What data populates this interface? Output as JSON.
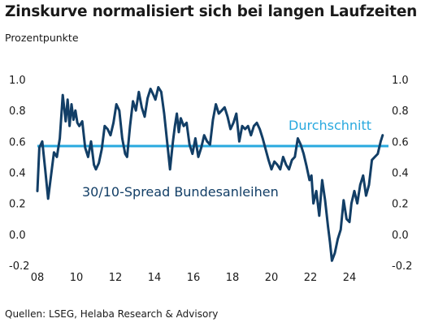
{
  "title": "Zinskurve normalisiert sich bei langen Laufzeiten",
  "subtitle": "Prozentpunkte",
  "source": "Quellen: LSEG, Helaba Research & Advisory",
  "colors": {
    "series": "#123e66",
    "average": "#29a9df"
  },
  "chart_data": {
    "type": "line",
    "title": "Zinskurve normalisiert sich bei langen Laufzeiten",
    "ylabel": "Prozentpunkte",
    "xlim": [
      2008,
      2026
    ],
    "ylim": [
      -0.2,
      1.0
    ],
    "x_ticks": [
      2008,
      2010,
      2012,
      2014,
      2016,
      2018,
      2020,
      2022,
      2024
    ],
    "x_tick_labels": [
      "08",
      "10",
      "12",
      "14",
      "16",
      "18",
      "20",
      "22",
      "24"
    ],
    "y_ticks": [
      -0.2,
      0.0,
      0.2,
      0.4,
      0.6,
      0.8,
      1.0
    ],
    "y_tick_labels": [
      "-0.2",
      "0.0",
      "0.2",
      "0.4",
      "0.6",
      "0.8",
      "1.0"
    ],
    "y_axis_sides": [
      "left",
      "right"
    ],
    "grid": false,
    "legend": "none",
    "annotations": [
      {
        "text": "Durchschnitt",
        "target": "average"
      },
      {
        "text": "30/10-Spread Bundesanleihen",
        "target": "series"
      }
    ],
    "average": {
      "name": "Durchschnitt",
      "value": 0.57
    },
    "series": [
      {
        "name": "30/10-Spread Bundesanleihen",
        "x": [
          2008.0,
          2008.1,
          2008.25,
          2008.4,
          2008.55,
          2008.7,
          2008.85,
          2009.0,
          2009.15,
          2009.3,
          2009.45,
          2009.55,
          2009.65,
          2009.75,
          2009.85,
          2009.95,
          2010.05,
          2010.15,
          2010.3,
          2010.45,
          2010.6,
          2010.75,
          2010.9,
          2011.0,
          2011.15,
          2011.3,
          2011.45,
          2011.6,
          2011.75,
          2011.9,
          2012.05,
          2012.2,
          2012.35,
          2012.5,
          2012.6,
          2012.75,
          2012.9,
          2013.05,
          2013.2,
          2013.35,
          2013.5,
          2013.65,
          2013.8,
          2013.95,
          2014.05,
          2014.2,
          2014.35,
          2014.5,
          2014.65,
          2014.8,
          2014.95,
          2015.05,
          2015.15,
          2015.25,
          2015.35,
          2015.5,
          2015.65,
          2015.8,
          2015.95,
          2016.1,
          2016.25,
          2016.4,
          2016.55,
          2016.7,
          2016.85,
          2017.0,
          2017.15,
          2017.3,
          2017.45,
          2017.6,
          2017.75,
          2017.9,
          2018.05,
          2018.2,
          2018.35,
          2018.5,
          2018.65,
          2018.8,
          2018.95,
          2019.1,
          2019.25,
          2019.4,
          2019.55,
          2019.7,
          2019.85,
          2020.0,
          2020.15,
          2020.3,
          2020.45,
          2020.6,
          2020.75,
          2020.9,
          2021.05,
          2021.2,
          2021.35,
          2021.5,
          2021.65,
          2021.8,
          2021.95,
          2022.05,
          2022.15,
          2022.3,
          2022.45,
          2022.6,
          2022.75,
          2022.9,
          2023.0,
          2023.1,
          2023.25,
          2023.4,
          2023.55,
          2023.7,
          2023.85,
          2024.0,
          2024.1,
          2024.25,
          2024.4,
          2024.55,
          2024.7,
          2024.85,
          2025.0,
          2025.15,
          2025.3,
          2025.45,
          2025.6,
          2025.7
        ],
        "y": [
          0.28,
          0.56,
          0.6,
          0.42,
          0.23,
          0.38,
          0.53,
          0.5,
          0.62,
          0.9,
          0.73,
          0.87,
          0.7,
          0.84,
          0.74,
          0.8,
          0.72,
          0.7,
          0.73,
          0.56,
          0.5,
          0.6,
          0.45,
          0.42,
          0.46,
          0.55,
          0.7,
          0.68,
          0.64,
          0.72,
          0.84,
          0.8,
          0.62,
          0.52,
          0.5,
          0.7,
          0.86,
          0.8,
          0.92,
          0.82,
          0.76,
          0.88,
          0.94,
          0.9,
          0.87,
          0.95,
          0.92,
          0.78,
          0.6,
          0.42,
          0.6,
          0.7,
          0.78,
          0.66,
          0.75,
          0.7,
          0.72,
          0.58,
          0.52,
          0.62,
          0.5,
          0.56,
          0.64,
          0.6,
          0.58,
          0.74,
          0.84,
          0.78,
          0.8,
          0.82,
          0.76,
          0.68,
          0.72,
          0.78,
          0.6,
          0.7,
          0.68,
          0.7,
          0.64,
          0.7,
          0.72,
          0.68,
          0.62,
          0.55,
          0.48,
          0.42,
          0.47,
          0.45,
          0.42,
          0.5,
          0.45,
          0.42,
          0.48,
          0.5,
          0.62,
          0.58,
          0.52,
          0.44,
          0.35,
          0.38,
          0.2,
          0.28,
          0.12,
          0.35,
          0.22,
          0.05,
          -0.05,
          -0.17,
          -0.12,
          -0.03,
          0.03,
          0.22,
          0.1,
          0.08,
          0.2,
          0.28,
          0.2,
          0.32,
          0.38,
          0.25,
          0.32,
          0.48,
          0.5,
          0.52,
          0.6,
          0.64
        ]
      }
    ]
  }
}
